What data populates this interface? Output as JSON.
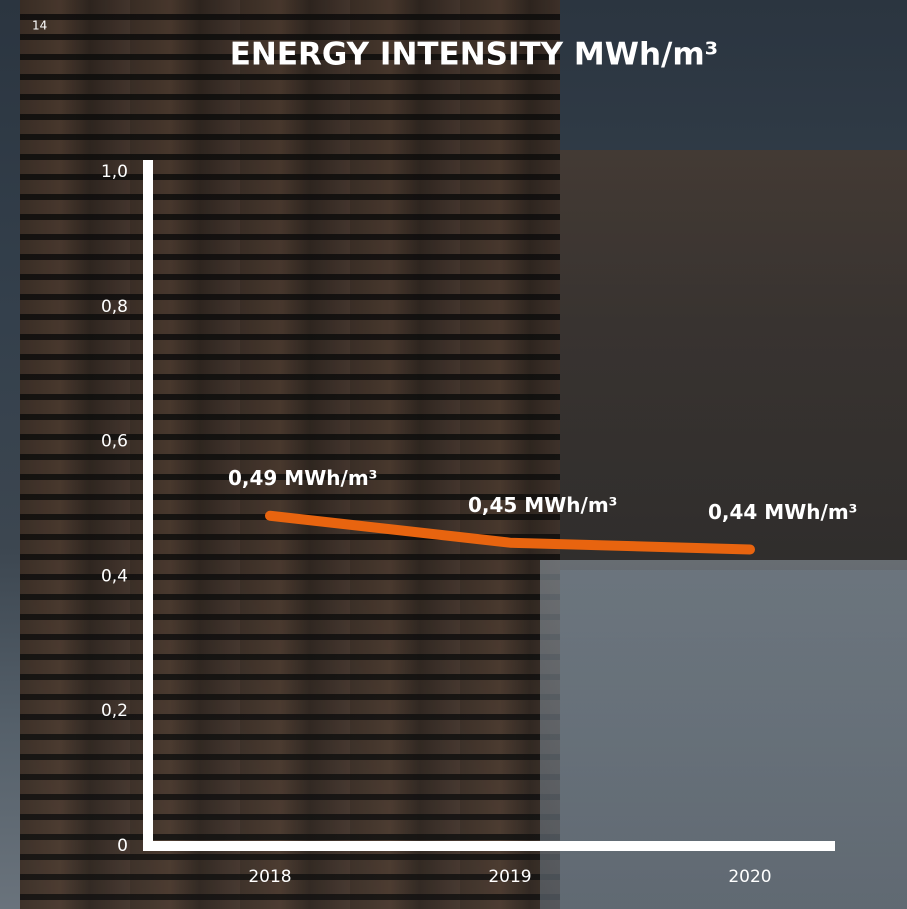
{
  "page_number": "14",
  "chart_data": {
    "type": "line",
    "title": "ENERGY INTENSITY MWh/m³",
    "categories": [
      "2018",
      "2019",
      "2020"
    ],
    "values": [
      0.49,
      0.45,
      0.44
    ],
    "value_labels": [
      "0,49 MWh/m³",
      "0,45 MWh/m³",
      "0,44 MWh/m³"
    ],
    "color": "#e8640f",
    "ylim": [
      0,
      1
    ],
    "yticks": [
      0,
      {
        "value": 0.2,
        "label": "0,2"
      },
      {
        "value": 0.4,
        "label": "0,4"
      },
      {
        "value": 0.6,
        "label": "0,6"
      },
      {
        "value": 0.8,
        "label": "0,8"
      },
      {
        "value": 1,
        "label": "1,0"
      }
    ]
  }
}
